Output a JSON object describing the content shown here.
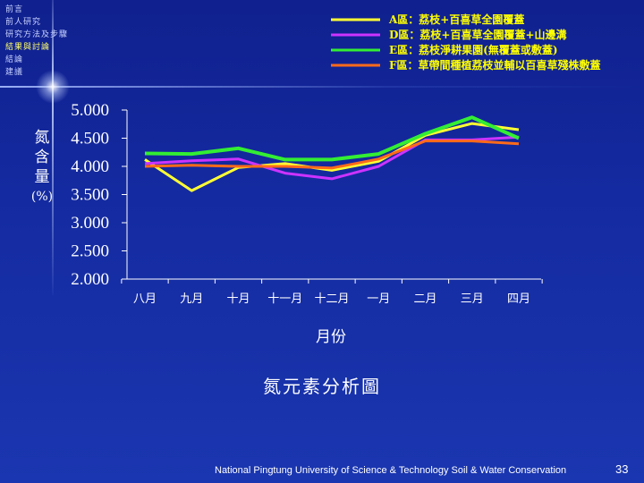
{
  "nav": {
    "items": [
      "前言",
      "前人研究",
      "研究方法及步驟",
      "結果與討論",
      "結論",
      "建議"
    ],
    "active_index": 3
  },
  "chart_data": {
    "type": "line",
    "title": "氮元素分析圖",
    "xlabel": "月份",
    "ylabel": "氮含量",
    "ylabel_chars": [
      "氮",
      "含",
      "量",
      "(%)"
    ],
    "categories": [
      "八月",
      "九月",
      "十月",
      "十一月",
      "十二月",
      "一月",
      "二月",
      "三月",
      "四月"
    ],
    "yticks": [
      "5.000",
      "4.500",
      "4.000",
      "3.500",
      "3.000",
      "2.500",
      "2.000"
    ],
    "ylim": [
      2.0,
      5.0
    ],
    "legend_position": "top-right",
    "series": [
      {
        "name": "A區：荔枝+百喜草全園覆蓋",
        "color": "#ffff33",
        "values": [
          4.12,
          3.57,
          3.98,
          4.05,
          3.93,
          4.09,
          4.55,
          4.76,
          4.65
        ]
      },
      {
        "name": "D區：荔枝+百喜草全園覆蓋+山邊溝",
        "color": "#cc33ff",
        "values": [
          4.05,
          4.1,
          4.13,
          3.88,
          3.78,
          4.0,
          4.47,
          4.47,
          4.52
        ]
      },
      {
        "name": "E區：荔枝淨耕果園(無覆蓋或敷蓋)",
        "color": "#33ee33",
        "values": [
          4.23,
          4.22,
          4.32,
          4.12,
          4.12,
          4.22,
          4.58,
          4.87,
          4.5
        ]
      },
      {
        "name": "F區：草帶間種植荔枝並輔以百喜草殘株敷蓋",
        "color": "#ff6a1a",
        "values": [
          4.0,
          4.02,
          4.0,
          4.0,
          3.97,
          4.13,
          4.45,
          4.45,
          4.4
        ]
      }
    ]
  },
  "footer": {
    "institution": "National Pingtung University of Science & Technology   Soil & Water Conservation",
    "page_number": "33"
  }
}
